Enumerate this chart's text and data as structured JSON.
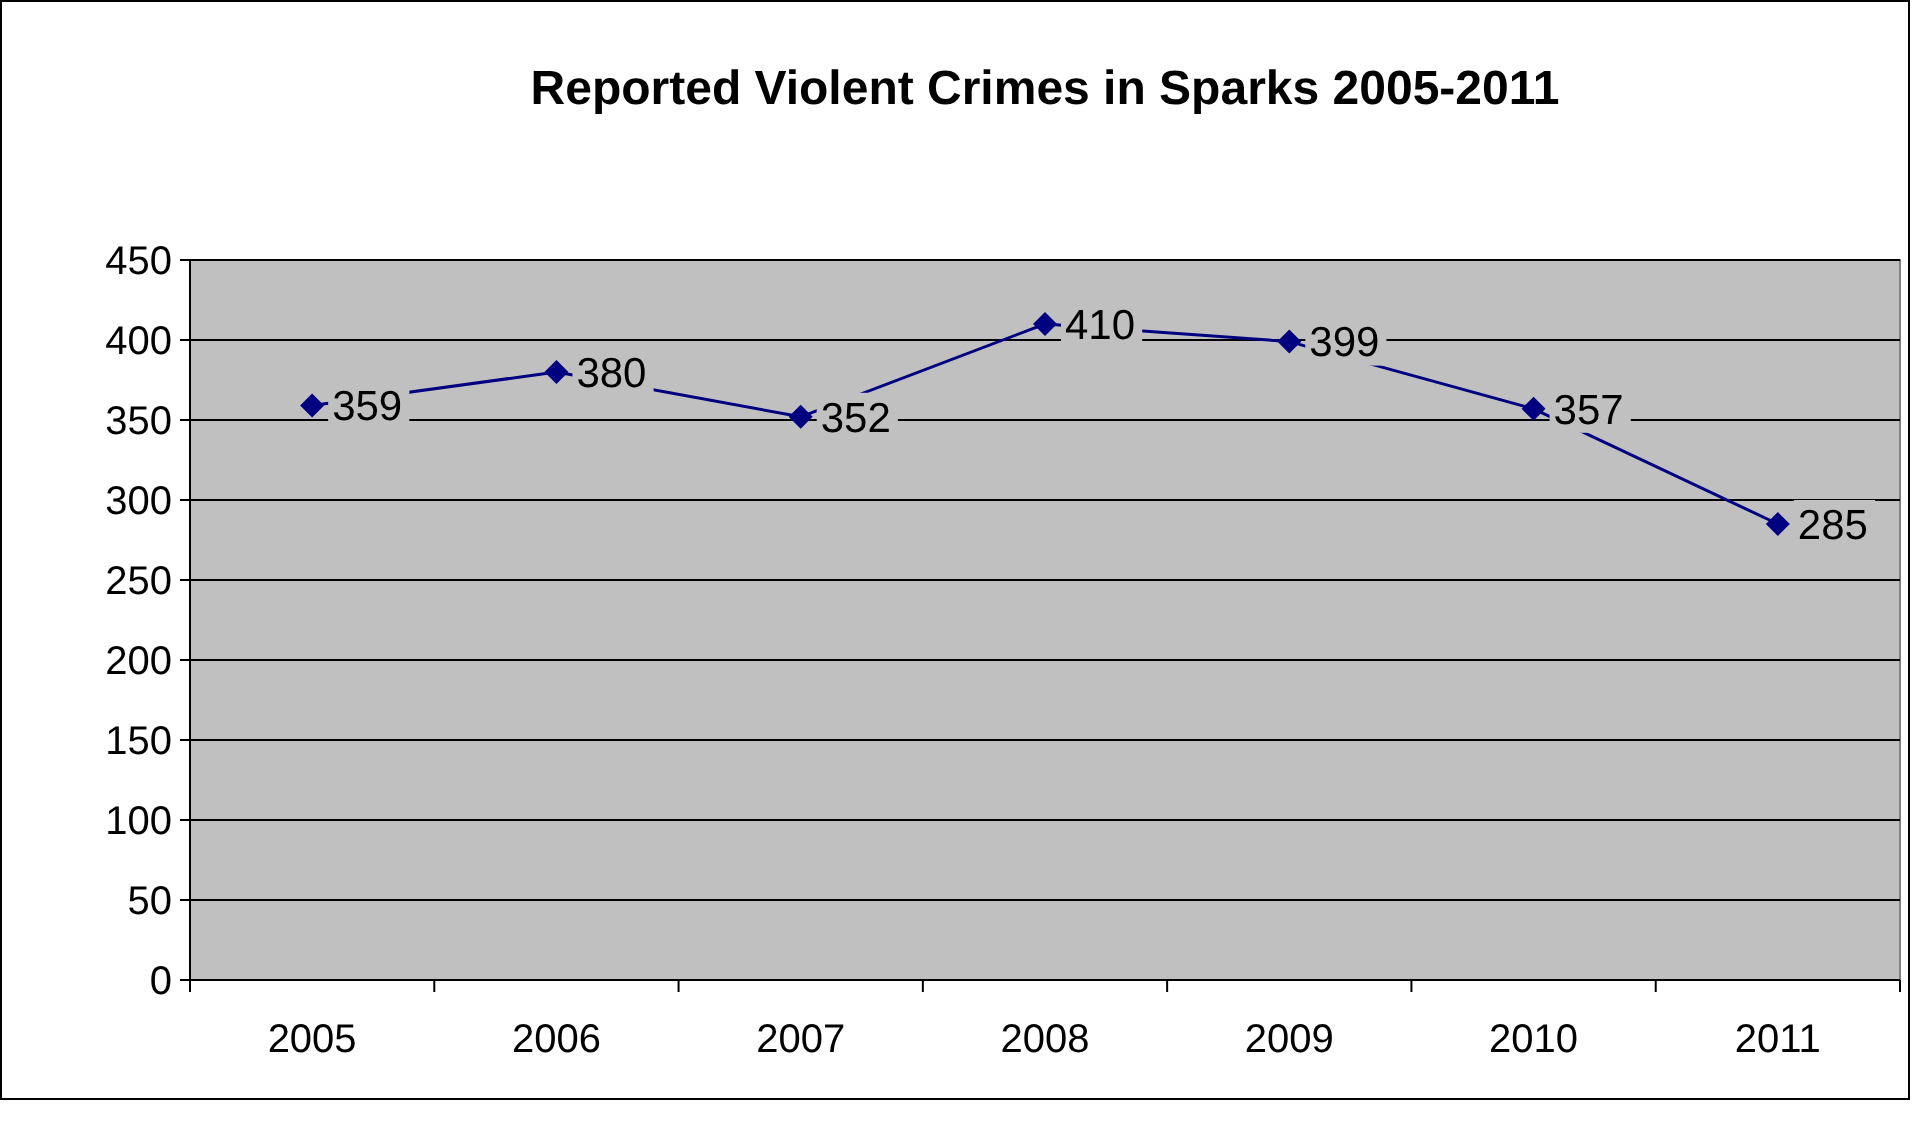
{
  "chart_data": {
    "type": "line",
    "title": "Reported Violent Crimes in Sparks 2005-2011",
    "categories": [
      "2005",
      "2006",
      "2007",
      "2008",
      "2009",
      "2010",
      "2011"
    ],
    "series": [
      {
        "color": "#000080",
        "values": [
          359,
          380,
          352,
          410,
          399,
          357,
          285
        ]
      }
    ],
    "ylim": [
      0,
      450
    ],
    "yticks": [
      0,
      50,
      100,
      150,
      200,
      250,
      300,
      350,
      400,
      450
    ],
    "grid": "y",
    "marker": "diamond",
    "line_style": "solid",
    "data_labels": true
  }
}
